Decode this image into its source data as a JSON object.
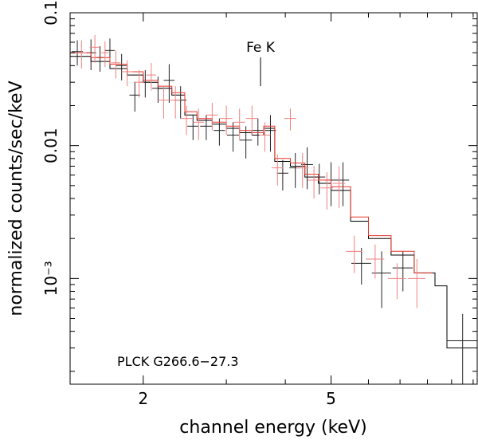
{
  "chart_data": {
    "type": "line",
    "title": "",
    "xlabel": "channel energy (keV)",
    "ylabel": "normalized counts/sec/keV",
    "x_scale": "log",
    "y_scale": "log",
    "xlim": [
      1.4,
      10.2
    ],
    "ylim": [
      0.00016,
      0.1
    ],
    "x_ticks": [
      {
        "value": 2,
        "label": "2"
      },
      {
        "value": 5,
        "label": "5"
      }
    ],
    "y_ticks": [
      {
        "value": 0.1,
        "label": "0.1"
      },
      {
        "value": 0.01,
        "label": "0.01"
      },
      {
        "value": 0.001,
        "label": "10⁻³"
      }
    ],
    "annotations": [
      {
        "text": "Fe K",
        "x": 3.5,
        "y": 0.058
      },
      {
        "text": "PLCK G266.6−27.3"
      }
    ],
    "grid": false,
    "colors": {
      "series_black": "#000000",
      "series_red": "#e8342a",
      "red_data": "#f08080"
    },
    "series": [
      {
        "color": "#000000",
        "data": [
          {
            "x": 1.45,
            "y": 0.051,
            "xerr": 0.04,
            "yerr": 0.011
          },
          {
            "x": 1.55,
            "y": 0.05,
            "xerr": 0.04,
            "yerr": 0.013
          },
          {
            "x": 1.62,
            "y": 0.046,
            "xerr": 0.03,
            "yerr": 0.01
          },
          {
            "x": 1.7,
            "y": 0.052,
            "xerr": 0.04,
            "yerr": 0.012
          },
          {
            "x": 1.8,
            "y": 0.04,
            "xerr": 0.05,
            "yerr": 0.009
          },
          {
            "x": 1.92,
            "y": 0.024,
            "xerr": 0.05,
            "yerr": 0.006
          },
          {
            "x": 2.02,
            "y": 0.03,
            "xerr": 0.05,
            "yerr": 0.007
          },
          {
            "x": 2.15,
            "y": 0.027,
            "xerr": 0.06,
            "yerr": 0.006
          },
          {
            "x": 2.27,
            "y": 0.031,
            "xerr": 0.06,
            "yerr": 0.01
          },
          {
            "x": 2.4,
            "y": 0.022,
            "xerr": 0.07,
            "yerr": 0.006
          },
          {
            "x": 2.55,
            "y": 0.014,
            "xerr": 0.07,
            "yerr": 0.003
          },
          {
            "x": 2.72,
            "y": 0.014,
            "xerr": 0.08,
            "yerr": 0.003
          },
          {
            "x": 2.9,
            "y": 0.013,
            "xerr": 0.08,
            "yerr": 0.003
          },
          {
            "x": 3.1,
            "y": 0.012,
            "xerr": 0.09,
            "yerr": 0.003
          },
          {
            "x": 3.3,
            "y": 0.011,
            "xerr": 0.1,
            "yerr": 0.003
          },
          {
            "x": 3.5,
            "y": 0.013,
            "xerr": 0.1,
            "yerr": 0.003
          },
          {
            "x": 3.72,
            "y": 0.013,
            "xerr": 0.1,
            "yerr": 0.004
          },
          {
            "x": 3.95,
            "y": 0.0062,
            "xerr": 0.11,
            "yerr": 0.0016
          },
          {
            "x": 4.2,
            "y": 0.0068,
            "xerr": 0.12,
            "yerr": 0.002
          },
          {
            "x": 4.45,
            "y": 0.0072,
            "xerr": 0.13,
            "yerr": 0.0025
          },
          {
            "x": 4.72,
            "y": 0.0058,
            "xerr": 0.14,
            "yerr": 0.0015
          },
          {
            "x": 5.0,
            "y": 0.0055,
            "xerr": 0.15,
            "yerr": 0.002
          },
          {
            "x": 5.3,
            "y": 0.0055,
            "xerr": 0.16,
            "yerr": 0.002
          },
          {
            "x": 5.8,
            "y": 0.0013,
            "xerr": 0.28,
            "yerr": 0.0004
          },
          {
            "x": 6.4,
            "y": 0.0011,
            "xerr": 0.3,
            "yerr": 0.0005
          },
          {
            "x": 7.1,
            "y": 0.0012,
            "xerr": 0.35,
            "yerr": 0.0004
          },
          {
            "x": 9.5,
            "y": 0.00034,
            "xerr": 0.7,
            "yerr": 0.0002
          }
        ],
        "model": [
          [
            1.4,
            0.047
          ],
          [
            1.55,
            0.043
          ],
          [
            1.7,
            0.038
          ],
          [
            1.85,
            0.034
          ],
          [
            2.0,
            0.03
          ],
          [
            2.15,
            0.027
          ],
          [
            2.3,
            0.024
          ],
          [
            2.45,
            0.017
          ],
          [
            2.6,
            0.0155
          ],
          [
            2.8,
            0.0145
          ],
          [
            3.0,
            0.0135
          ],
          [
            3.2,
            0.0125
          ],
          [
            3.4,
            0.012
          ],
          [
            3.6,
            0.0135
          ],
          [
            3.8,
            0.0076
          ],
          [
            4.1,
            0.007
          ],
          [
            4.4,
            0.0058
          ],
          [
            4.7,
            0.0052
          ],
          [
            5.0,
            0.0046
          ],
          [
            5.5,
            0.0027
          ],
          [
            6.0,
            0.002
          ],
          [
            6.7,
            0.0015
          ],
          [
            7.5,
            0.0011
          ],
          [
            8.3,
            0.00088
          ],
          [
            8.8,
            0.0003
          ],
          [
            10.2,
            0.0003
          ]
        ]
      },
      {
        "color": "#e8342a",
        "data": [
          {
            "x": 1.48,
            "y": 0.05,
            "xerr": 0.04,
            "yerr": 0.012
          },
          {
            "x": 1.58,
            "y": 0.055,
            "xerr": 0.04,
            "yerr": 0.013
          },
          {
            "x": 1.66,
            "y": 0.05,
            "xerr": 0.03,
            "yerr": 0.011
          },
          {
            "x": 1.75,
            "y": 0.042,
            "xerr": 0.04,
            "yerr": 0.01
          },
          {
            "x": 1.85,
            "y": 0.036,
            "xerr": 0.05,
            "yerr": 0.008
          },
          {
            "x": 1.96,
            "y": 0.03,
            "xerr": 0.05,
            "yerr": 0.007
          },
          {
            "x": 2.08,
            "y": 0.034,
            "xerr": 0.05,
            "yerr": 0.008
          },
          {
            "x": 2.21,
            "y": 0.022,
            "xerr": 0.06,
            "yerr": 0.006
          },
          {
            "x": 2.34,
            "y": 0.022,
            "xerr": 0.06,
            "yerr": 0.006
          },
          {
            "x": 2.47,
            "y": 0.016,
            "xerr": 0.07,
            "yerr": 0.004
          },
          {
            "x": 2.62,
            "y": 0.015,
            "xerr": 0.07,
            "yerr": 0.004
          },
          {
            "x": 2.8,
            "y": 0.017,
            "xerr": 0.08,
            "yerr": 0.004
          },
          {
            "x": 3.0,
            "y": 0.016,
            "xerr": 0.09,
            "yerr": 0.004
          },
          {
            "x": 3.2,
            "y": 0.015,
            "xerr": 0.09,
            "yerr": 0.004
          },
          {
            "x": 3.4,
            "y": 0.016,
            "xerr": 0.1,
            "yerr": 0.004
          },
          {
            "x": 3.62,
            "y": 0.012,
            "xerr": 0.1,
            "yerr": 0.003
          },
          {
            "x": 3.85,
            "y": 0.0068,
            "xerr": 0.11,
            "yerr": 0.0018
          },
          {
            "x": 4.1,
            "y": 0.016,
            "xerr": 0.12,
            "yerr": 0.003
          },
          {
            "x": 4.35,
            "y": 0.0068,
            "xerr": 0.13,
            "yerr": 0.002
          },
          {
            "x": 4.6,
            "y": 0.0055,
            "xerr": 0.14,
            "yerr": 0.0015
          },
          {
            "x": 4.9,
            "y": 0.0048,
            "xerr": 0.15,
            "yerr": 0.0015
          },
          {
            "x": 5.2,
            "y": 0.0052,
            "xerr": 0.16,
            "yerr": 0.0018
          },
          {
            "x": 5.6,
            "y": 0.0016,
            "xerr": 0.22,
            "yerr": 0.0005
          },
          {
            "x": 6.2,
            "y": 0.0014,
            "xerr": 0.28,
            "yerr": 0.0004
          },
          {
            "x": 6.9,
            "y": 0.001,
            "xerr": 0.3,
            "yerr": 0.0003
          },
          {
            "x": 7.6,
            "y": 0.001,
            "xerr": 0.32,
            "yerr": 0.0004
          }
        ],
        "model": [
          [
            1.4,
            0.05
          ],
          [
            1.55,
            0.046
          ],
          [
            1.7,
            0.041
          ],
          [
            1.85,
            0.036
          ],
          [
            2.0,
            0.031
          ],
          [
            2.15,
            0.028
          ],
          [
            2.3,
            0.025
          ],
          [
            2.45,
            0.018
          ],
          [
            2.6,
            0.016
          ],
          [
            2.8,
            0.015
          ],
          [
            3.0,
            0.014
          ],
          [
            3.2,
            0.013
          ],
          [
            3.4,
            0.0125
          ],
          [
            3.6,
            0.014
          ],
          [
            3.8,
            0.008
          ],
          [
            4.1,
            0.0074
          ],
          [
            4.4,
            0.0061
          ],
          [
            4.7,
            0.0055
          ],
          [
            5.0,
            0.0049
          ],
          [
            5.5,
            0.0029
          ],
          [
            6.0,
            0.0021
          ],
          [
            6.7,
            0.0016
          ],
          [
            7.5,
            0.0011
          ],
          [
            8.2,
            0.0011
          ]
        ]
      }
    ]
  }
}
